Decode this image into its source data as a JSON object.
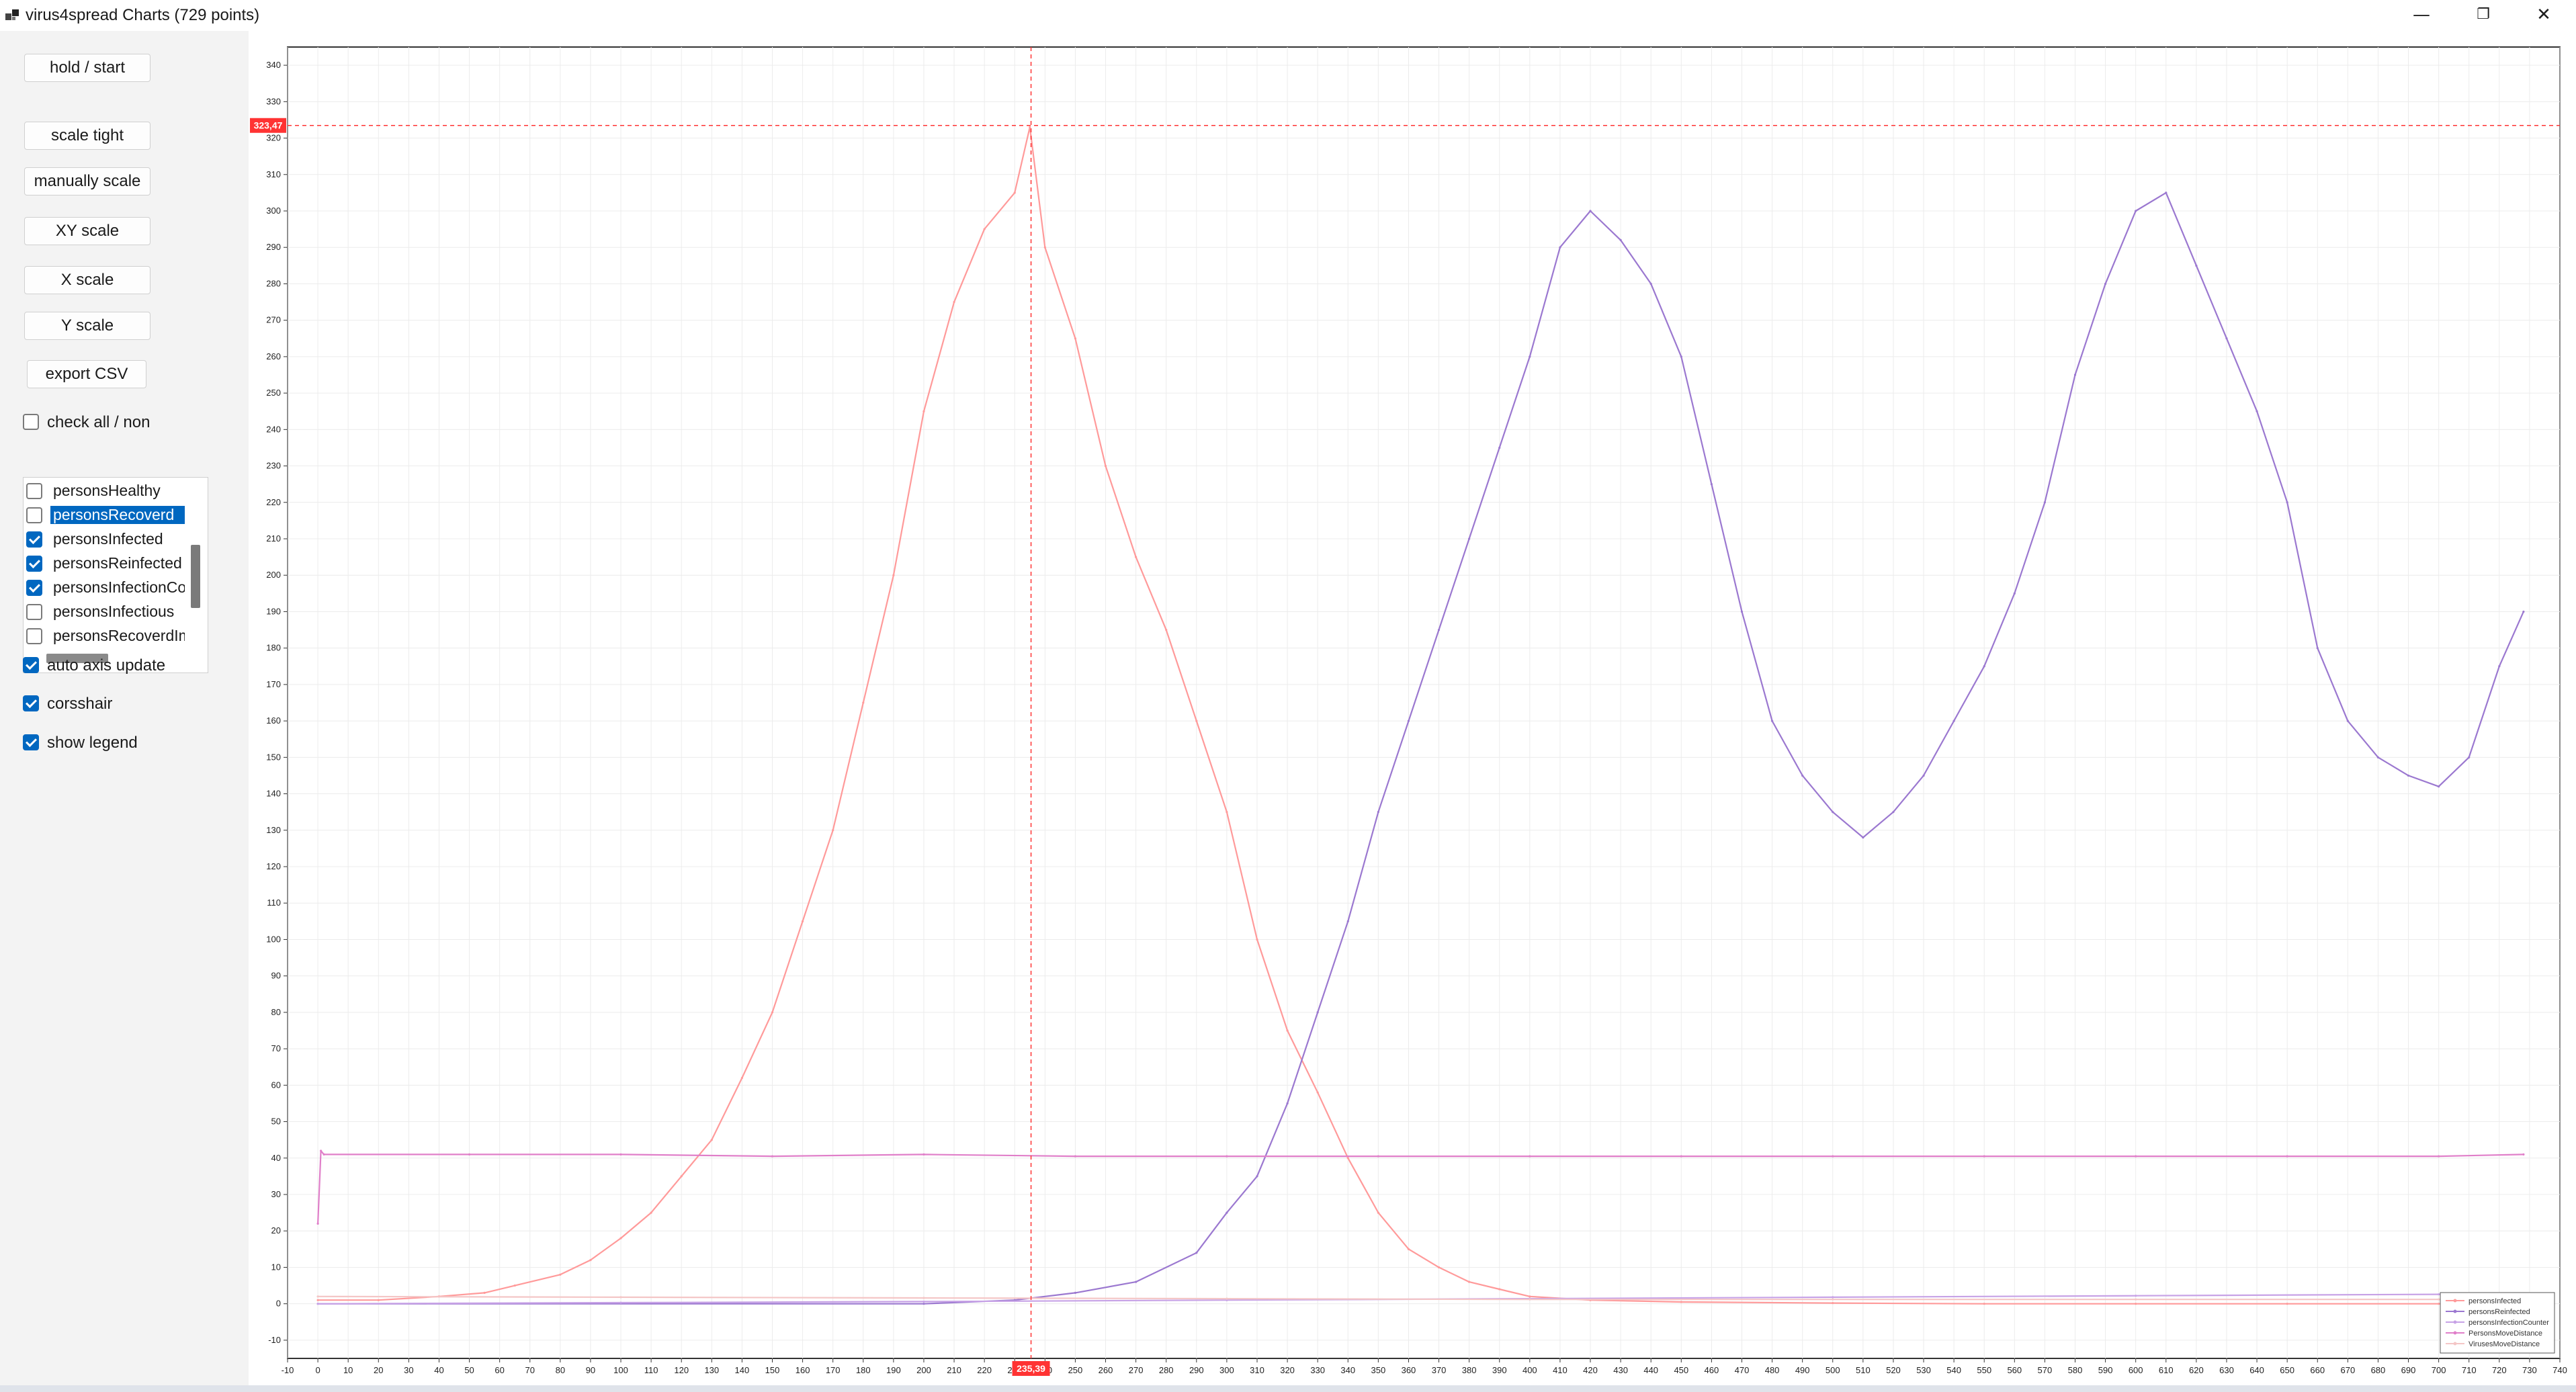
{
  "window": {
    "title": "virus4spread Charts (729 points)",
    "minimize_glyph": "—",
    "maximize_glyph": "❐",
    "close_glyph": "✕"
  },
  "controls": {
    "hold_start": "hold / start",
    "scale_tight": "scale tight",
    "manually_scale": "manually scale",
    "xy_scale": "XY scale",
    "x_scale": "X scale",
    "y_scale": "Y scale",
    "export_csv": "export CSV",
    "check_all": "check all / non"
  },
  "series_list": [
    {
      "label": "personsHealthy",
      "checked": false,
      "selected": false
    },
    {
      "label": "personsRecoverd",
      "checked": false,
      "selected": true
    },
    {
      "label": "personsInfected",
      "checked": true,
      "selected": false
    },
    {
      "label": "personsReinfected",
      "checked": true,
      "selected": false
    },
    {
      "label": "personsInfectionCounter",
      "checked": true,
      "selected": false
    },
    {
      "label": "personsInfectious",
      "checked": false,
      "selected": false
    },
    {
      "label": "personsRecoverdImmune",
      "checked": false,
      "selected": false
    }
  ],
  "options": {
    "auto_axis_update": "auto axis update",
    "crosshair": "corsshair",
    "show_legend": "show legend"
  },
  "crosshair": {
    "x_value": 235.39,
    "y_value": 323.47,
    "x_label": "235,39",
    "y_label": "323,47",
    "color": "#ff3333"
  },
  "chart_data": {
    "type": "line",
    "title": "",
    "xlabel": "",
    "ylabel": "",
    "xlim": [
      -10,
      740
    ],
    "ylim": [
      -15,
      345
    ],
    "x_ticks": [
      -10,
      0,
      10,
      20,
      30,
      40,
      50,
      60,
      70,
      80,
      90,
      100,
      110,
      120,
      130,
      140,
      150,
      160,
      170,
      180,
      190,
      200,
      210,
      220,
      230,
      240,
      250,
      260,
      270,
      280,
      290,
      300,
      310,
      320,
      330,
      340,
      350,
      360,
      370,
      380,
      390,
      400,
      410,
      420,
      430,
      440,
      450,
      460,
      470,
      480,
      490,
      500,
      510,
      520,
      530,
      540,
      550,
      560,
      570,
      580,
      590,
      600,
      610,
      620,
      630,
      640,
      650,
      660,
      670,
      680,
      690,
      700,
      710,
      720,
      730,
      740
    ],
    "y_ticks": [
      -10,
      0,
      10,
      20,
      30,
      40,
      50,
      60,
      70,
      80,
      90,
      100,
      110,
      120,
      130,
      140,
      150,
      160,
      170,
      180,
      190,
      200,
      210,
      220,
      230,
      240,
      250,
      260,
      270,
      280,
      290,
      300,
      310,
      320,
      330,
      340
    ],
    "grid": true,
    "legend_position": "bottom-right",
    "series": [
      {
        "name": "personsInfected",
        "color": "#ff9a9a",
        "x": [
          0,
          20,
          40,
          55,
          65,
          80,
          90,
          100,
          110,
          120,
          130,
          140,
          150,
          160,
          170,
          180,
          190,
          200,
          210,
          220,
          230,
          235,
          240,
          250,
          260,
          270,
          280,
          290,
          300,
          310,
          320,
          330,
          340,
          350,
          360,
          370,
          380,
          390,
          400,
          420,
          450,
          500,
          550,
          600,
          650,
          700,
          728
        ],
        "y": [
          1,
          1,
          2,
          3,
          5,
          8,
          12,
          18,
          25,
          35,
          45,
          62,
          80,
          105,
          130,
          165,
          200,
          245,
          275,
          295,
          305,
          323,
          290,
          265,
          230,
          205,
          185,
          160,
          135,
          100,
          75,
          58,
          40,
          25,
          15,
          10,
          6,
          4,
          2,
          1,
          0.5,
          0.2,
          0,
          0,
          0,
          0,
          0
        ]
      },
      {
        "name": "personsReinfected",
        "color": "#9b78d0",
        "x": [
          0,
          200,
          230,
          250,
          270,
          290,
          300,
          310,
          320,
          330,
          340,
          350,
          360,
          370,
          380,
          390,
          400,
          410,
          420,
          430,
          440,
          450,
          460,
          470,
          480,
          490,
          500,
          510,
          520,
          530,
          540,
          550,
          560,
          570,
          580,
          590,
          600,
          610,
          620,
          630,
          640,
          650,
          660,
          670,
          680,
          690,
          700,
          710,
          720,
          728
        ],
        "y": [
          0,
          0,
          1,
          3,
          6,
          14,
          25,
          35,
          55,
          80,
          105,
          135,
          160,
          185,
          210,
          235,
          260,
          290,
          300,
          292,
          280,
          260,
          225,
          190,
          160,
          145,
          135,
          128,
          135,
          145,
          160,
          175,
          195,
          220,
          255,
          280,
          300,
          305,
          285,
          265,
          245,
          220,
          180,
          160,
          150,
          145,
          142,
          150,
          175,
          190
        ]
      },
      {
        "name": "personsInfectionCounter",
        "color": "#c7a2e6",
        "x": [
          0,
          100,
          200,
          300,
          400,
          500,
          600,
          700,
          728
        ],
        "y": [
          0,
          0.3,
          0.6,
          1,
          1.4,
          1.8,
          2.2,
          2.6,
          2.8
        ]
      },
      {
        "name": "PersonsMoveDistance",
        "color": "#e07fc9",
        "x": [
          0,
          1,
          2,
          50,
          100,
          150,
          200,
          250,
          300,
          350,
          400,
          450,
          500,
          550,
          600,
          650,
          700,
          728
        ],
        "y": [
          22,
          42,
          41,
          41,
          41,
          40.5,
          41,
          40.5,
          40.5,
          40.5,
          40.5,
          40.5,
          40.5,
          40.5,
          40.5,
          40.5,
          40.5,
          41
        ]
      },
      {
        "name": "VirusesMoveDistance",
        "color": "#f4c6c6",
        "x": [
          0,
          100,
          200,
          300,
          400,
          500,
          600,
          700,
          728
        ],
        "y": [
          2,
          1.8,
          1.6,
          1.4,
          1.2,
          1.2,
          1.2,
          1.2,
          1.2
        ]
      }
    ]
  }
}
